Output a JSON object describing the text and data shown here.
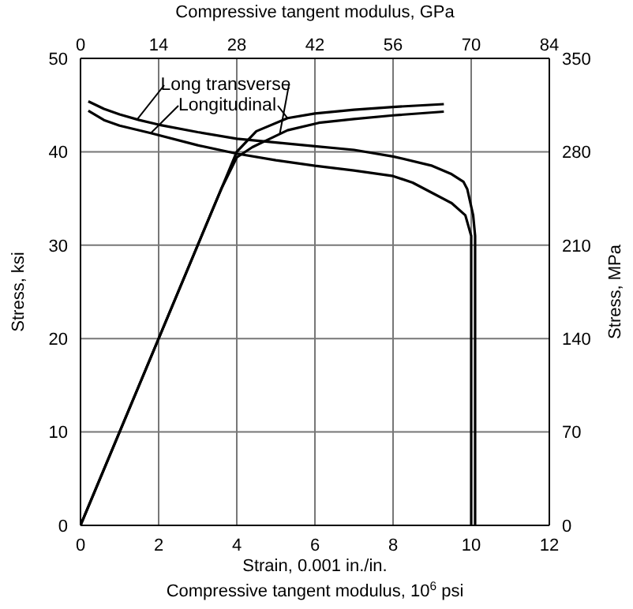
{
  "chart_data": {
    "type": "line",
    "xlabel": "Strain, 0.001 in./in.\nCompressive tangent modulus, 10$^{6}$ psi",
    "ylabel": "Stress, ksi",
    "y2label": "Stress, MPa",
    "x2label": "Compressive tangent modulus, GPa",
    "xlim": [
      0,
      12
    ],
    "xticks": [
      0,
      2,
      4,
      6,
      8,
      10,
      12
    ],
    "ylim": [
      0,
      50
    ],
    "yticks": [
      0,
      10,
      20,
      30,
      40,
      50
    ],
    "x2lim": [
      0,
      84
    ],
    "x2ticks": [
      0,
      14,
      28,
      42,
      56,
      70,
      84
    ],
    "y2lim": [
      0,
      350
    ],
    "y2ticks": [
      0,
      70,
      140,
      210,
      280,
      350
    ],
    "grid": true,
    "marker": "none",
    "series": [
      {
        "name": "Long transverse",
        "color": "#000000",
        "x": [
          0,
          3.6,
          4,
          4.4,
          4.7,
          5.3,
          6.1,
          7,
          8,
          9.3
        ],
        "values": [
          0,
          36,
          39.4,
          40.5,
          41.1,
          42.3,
          43.1,
          43.5,
          43.9,
          44.3
        ]
      },
      {
        "name": "Longitudinal",
        "color": "#000000",
        "x": [
          0,
          3.6,
          4,
          4.5,
          5.3,
          6,
          7,
          8,
          9.3
        ],
        "values": [
          0,
          36,
          40,
          42.2,
          43.6,
          44.1,
          44.5,
          44.8,
          45.1
        ]
      },
      {
        "color": "#000000",
        "x": [
          0.2,
          0.6,
          1,
          1.5,
          2,
          3,
          4,
          5,
          6,
          7,
          8,
          9,
          9.5,
          9.8,
          9.9,
          10.05,
          10.1,
          10.1
        ],
        "values": [
          45.4,
          44.6,
          44,
          43.4,
          42.9,
          42.1,
          41.4,
          41,
          40.6,
          40.2,
          39.5,
          38.5,
          37.6,
          36.8,
          36,
          33.2,
          31,
          0
        ]
      },
      {
        "color": "#000000",
        "x": [
          0.2,
          0.6,
          1,
          1.8,
          3,
          4,
          5,
          6,
          7,
          8,
          8.5,
          9,
          9.5,
          9.85,
          10,
          10,
          10
        ],
        "values": [
          44.4,
          43.4,
          42.8,
          42,
          40.7,
          39.8,
          39.1,
          38.5,
          38,
          37.4,
          36.7,
          35.6,
          34.5,
          33.2,
          31,
          28,
          0
        ]
      }
    ]
  }
}
